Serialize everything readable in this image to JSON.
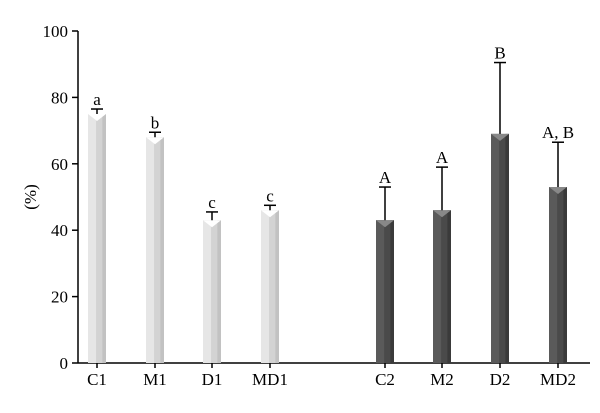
{
  "chart_data": {
    "type": "bar",
    "ylabel": "(%)",
    "ylim": [
      0,
      100
    ],
    "yticks": [
      0,
      20,
      40,
      60,
      80,
      100
    ],
    "grid": false,
    "categories": [
      "C1",
      "M1",
      "D1",
      "MD1",
      "C2",
      "M2",
      "D2",
      "MD2"
    ],
    "values": [
      75,
      68,
      43,
      46,
      43,
      46,
      69,
      53
    ],
    "errors": [
      1.5,
      1.5,
      2.5,
      1.5,
      10,
      13,
      21.5,
      13.5
    ],
    "significance": [
      "a",
      "b",
      "c",
      "c",
      "A",
      "A",
      "B",
      "A, B"
    ],
    "groups": [
      {
        "members": [
          0,
          1,
          2,
          3
        ],
        "color": "#d3d3d3",
        "highlight": "#e6e6e6",
        "shadow": "#c2c2c2",
        "notch": "#ffffff"
      },
      {
        "members": [
          4,
          5,
          6,
          7
        ],
        "color": "#4a4a4a",
        "highlight": "#5a5a5a",
        "shadow": "#3a3a3a",
        "notch": "#888888"
      }
    ]
  }
}
